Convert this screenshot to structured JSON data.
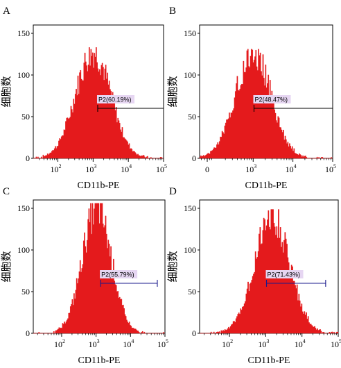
{
  "chart_data": [
    {
      "type": "area",
      "panel": "A",
      "xlabel": "CD11b-PE",
      "ylabel": "细胞数",
      "x_scale": "log",
      "xlim": [
        20,
        100000
      ],
      "ylim": [
        0,
        160
      ],
      "x_ticks": [
        {
          "value": 100,
          "label": "10",
          "exp": "2"
        },
        {
          "value": 1000,
          "label": "10",
          "exp": "3"
        },
        {
          "value": 10000,
          "label": "10",
          "exp": "4"
        },
        {
          "value": 100000,
          "label": "10",
          "exp": "5"
        }
      ],
      "y_ticks": [
        0,
        50,
        100,
        150
      ],
      "distribution": {
        "peak_x": 1000,
        "peak_count": 128,
        "spread": 0.5
      },
      "gate": {
        "label": "P2(60.19%)",
        "percent": 60.19,
        "x_start": 1350,
        "x_end": 100000,
        "y": 60,
        "color": "#000000"
      }
    },
    {
      "type": "area",
      "panel": "B",
      "xlabel": "CD11b-PE",
      "ylabel": "细胞数",
      "x_scale": "log",
      "xlim": [
        45,
        100000
      ],
      "ylim": [
        0,
        160
      ],
      "x_ticks": [
        {
          "value": 70,
          "label": "0",
          "exp": ""
        },
        {
          "value": 1000,
          "label": "10",
          "exp": "3"
        },
        {
          "value": 10000,
          "label": "10",
          "exp": "4"
        },
        {
          "value": 100000,
          "label": "10",
          "exp": "5"
        }
      ],
      "y_ticks": [
        0,
        50,
        100,
        150
      ],
      "distribution": {
        "peak_x": 1000,
        "peak_count": 126,
        "spread": 0.45
      },
      "gate": {
        "label": "P2(48.47%)",
        "percent": 48.47,
        "x_start": 1050,
        "x_end": 100000,
        "y": 60,
        "color": "#000000"
      }
    },
    {
      "type": "area",
      "panel": "C",
      "xlabel": "CD11b-PE",
      "ylabel": "细胞数",
      "x_scale": "log",
      "xlim": [
        15,
        100000
      ],
      "ylim": [
        0,
        160
      ],
      "x_ticks": [
        {
          "value": 100,
          "label": "10",
          "exp": "2"
        },
        {
          "value": 1000,
          "label": "10",
          "exp": "3"
        },
        {
          "value": 10000,
          "label": "10",
          "exp": "4"
        },
        {
          "value": 100000,
          "label": "10",
          "exp": "5"
        }
      ],
      "y_ticks": [
        0,
        50,
        100,
        150
      ],
      "distribution": {
        "peak_x": 1050,
        "peak_count": 150,
        "spread": 0.42
      },
      "gate": {
        "label": "P2(55.79%)",
        "percent": 55.79,
        "x_start": 1350,
        "x_end": 60000,
        "y": 60,
        "color": "#1a1a8c"
      }
    },
    {
      "type": "area",
      "panel": "D",
      "xlabel": "CD11b-PE",
      "ylabel": "细胞数",
      "x_scale": "log",
      "xlim": [
        15,
        100000
      ],
      "ylim": [
        0,
        160
      ],
      "x_ticks": [
        {
          "value": 100,
          "label": "10",
          "exp": "2"
        },
        {
          "value": 1000,
          "label": "10",
          "exp": "3"
        },
        {
          "value": 10000,
          "label": "10",
          "exp": "4"
        },
        {
          "value": 100000,
          "label": "10",
          "exp": "5"
        }
      ],
      "y_ticks": [
        0,
        50,
        100,
        150
      ],
      "distribution": {
        "peak_x": 1500,
        "peak_count": 143,
        "spread": 0.48
      },
      "gate": {
        "label": "P2(71.43%)",
        "percent": 71.43,
        "x_start": 1050,
        "x_end": 45000,
        "y": 60,
        "color": "#1a1a8c"
      }
    }
  ],
  "colors": {
    "histogram_fill": "#e41a1c",
    "gate_label_bg": "#e6d6f2"
  }
}
